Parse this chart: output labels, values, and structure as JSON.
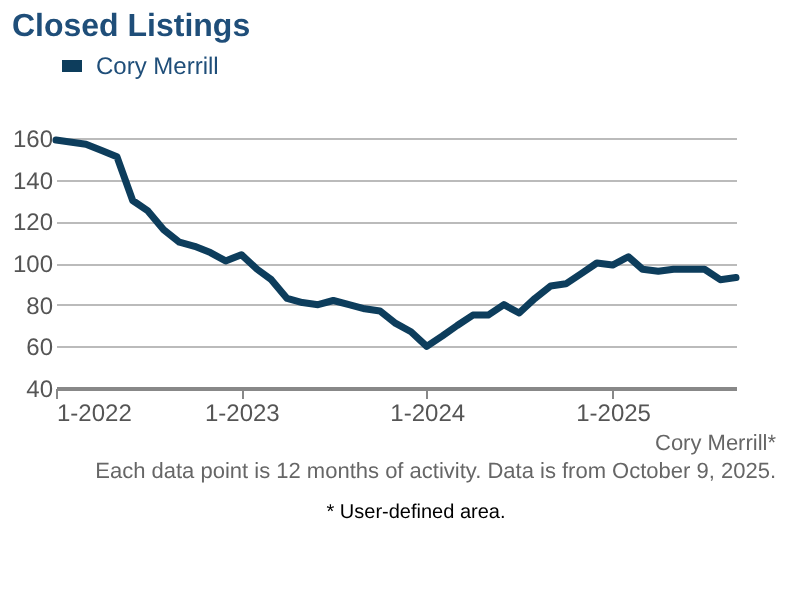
{
  "chart_data": {
    "type": "line",
    "title": "Closed Listings",
    "x": [
      "2022-01",
      "2022-02",
      "2022-03",
      "2022-04",
      "2022-05",
      "2022-06",
      "2022-07",
      "2022-08",
      "2022-09",
      "2022-10",
      "2022-11",
      "2022-12",
      "2023-01",
      "2023-02",
      "2023-03",
      "2023-04",
      "2023-05",
      "2023-06",
      "2023-07",
      "2023-08",
      "2023-09",
      "2023-10",
      "2023-11",
      "2023-12",
      "2024-01",
      "2024-02",
      "2024-03",
      "2024-04",
      "2024-05",
      "2024-06",
      "2024-07",
      "2024-08",
      "2024-09",
      "2024-10",
      "2024-11",
      "2024-12",
      "2025-01",
      "2025-02",
      "2025-03",
      "2025-04",
      "2025-05",
      "2025-06",
      "2025-07",
      "2025-08",
      "2025-09"
    ],
    "series": [
      {
        "name": "Cory Merrill",
        "color": "#0d3d5c",
        "values": [
          159,
          158,
          157,
          154,
          151,
          130,
          125,
          116,
          110,
          108,
          105,
          101,
          104,
          97,
          92,
          83,
          81,
          80,
          82,
          80,
          78,
          77,
          71,
          67,
          60,
          65,
          70,
          75,
          75,
          80,
          76,
          83,
          89,
          90,
          95,
          100,
          99,
          103,
          97,
          96,
          97,
          97,
          97,
          92,
          93
        ]
      }
    ],
    "xlim": [
      "2022-01",
      "2025-09"
    ],
    "xticks": [
      {
        "value": "2022-01",
        "label": "1-2022"
      },
      {
        "value": "2023-01",
        "label": "1-2023"
      },
      {
        "value": "2024-01",
        "label": "1-2024"
      },
      {
        "value": "2025-01",
        "label": "1-2025"
      }
    ],
    "ylim": [
      40,
      160
    ],
    "yticks": [
      40,
      60,
      80,
      100,
      120,
      140,
      160
    ],
    "grid": "y",
    "legend": "top",
    "marker": "none",
    "line_style": "solid",
    "annotations": [
      "Cory Merrill*",
      "Each data point is 12 months of activity. Data is from October 9, 2025.",
      "* User-defined area."
    ]
  }
}
